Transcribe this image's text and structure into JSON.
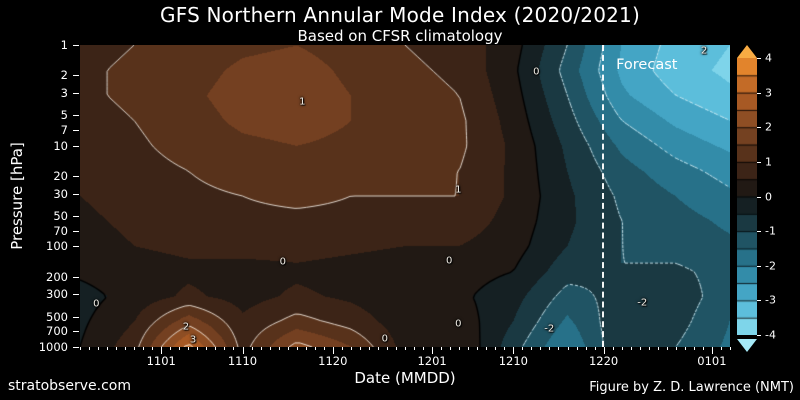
{
  "footer": {
    "site": "stratobserve.com",
    "credit": "Figure by Z. D. Lawrence (NMT)"
  },
  "chart_data": {
    "type": "heatmap",
    "title": "GFS Northern Annular Mode Index (2020/2021)",
    "subtitle": "Based on CFSR climatology",
    "xlabel": "Date (MMDD)",
    "ylabel": "Pressure [hPa]",
    "x_ticks": [
      {
        "label": "1101",
        "day": 0
      },
      {
        "label": "1110",
        "day": 9
      },
      {
        "label": "1120",
        "day": 19
      },
      {
        "label": "1201",
        "day": 30
      },
      {
        "label": "1210",
        "day": 39
      },
      {
        "label": "1220",
        "day": 49
      },
      {
        "label": "0101",
        "day": 61
      }
    ],
    "x_range_days": [
      -9,
      63
    ],
    "y_ticks": [
      1,
      2,
      3,
      5,
      7,
      10,
      20,
      30,
      50,
      70,
      100,
      200,
      300,
      500,
      700,
      1000
    ],
    "y_range_hpa": [
      1,
      1000
    ],
    "y_scale": "log",
    "grid_lines": false,
    "forecast": {
      "label": "Forecast",
      "day": 48.8
    },
    "contour_levels": [
      -3,
      -2,
      -1,
      0,
      1,
      2,
      3
    ],
    "colorbar": {
      "min": -4,
      "max": 4,
      "band_step": 0.5,
      "ticks": [
        4,
        3,
        2,
        1,
        0,
        -1,
        -2,
        -3,
        -4
      ],
      "over_color": "#f8ab43",
      "under_color": "#a5e9f7",
      "colormap_stops": [
        [
          -4,
          "#8ee0f2"
        ],
        [
          -3,
          "#4cb2d3"
        ],
        [
          -2,
          "#2b7f9b"
        ],
        [
          -1,
          "#1c4652"
        ],
        [
          0,
          "#131313"
        ],
        [
          1,
          "#4a2a18"
        ],
        [
          2,
          "#824824"
        ],
        [
          3,
          "#b35f24"
        ],
        [
          4,
          "#f2902e"
        ]
      ]
    },
    "grid": {
      "note": "rows are pressures (top to bottom), cols are days relative to Nov 1",
      "pressures": [
        1.0,
        1.78,
        3.16,
        5.62,
        10,
        17.8,
        31.6,
        56.2,
        100,
        178,
        316,
        562,
        1000
      ],
      "days": [
        -9,
        -3,
        3,
        9,
        15,
        21,
        27,
        33,
        39,
        45,
        51,
        57,
        63
      ],
      "values": [
        [
          0.8,
          1.0,
          1.2,
          1.4,
          1.5,
          1.3,
          1.0,
          0.8,
          0.2,
          -1.0,
          -2.5,
          -3.2,
          -3.5
        ],
        [
          0.9,
          1.1,
          1.3,
          1.6,
          1.7,
          1.4,
          1.1,
          0.9,
          0.1,
          -1.2,
          -2.6,
          -3.3,
          -3.6
        ],
        [
          0.9,
          1.1,
          1.4,
          1.7,
          1.8,
          1.5,
          1.2,
          1.0,
          0.2,
          -1.0,
          -2.4,
          -3.0,
          -3.4
        ],
        [
          0.8,
          1.0,
          1.3,
          1.6,
          1.7,
          1.5,
          1.2,
          1.1,
          0.3,
          -0.8,
          -2.0,
          -2.6,
          -3.0
        ],
        [
          0.7,
          0.9,
          1.2,
          1.4,
          1.5,
          1.4,
          1.2,
          1.1,
          0.4,
          -0.6,
          -1.6,
          -2.2,
          -2.6
        ],
        [
          0.6,
          0.8,
          1.0,
          1.2,
          1.3,
          1.2,
          1.1,
          1.0,
          0.4,
          -0.5,
          -1.3,
          -1.8,
          -2.2
        ],
        [
          0.5,
          0.7,
          0.9,
          1.0,
          1.1,
          1.0,
          1.0,
          1.0,
          0.4,
          -0.4,
          -1.1,
          -1.5,
          -1.9
        ],
        [
          0.4,
          0.6,
          0.8,
          0.9,
          0.9,
          0.9,
          0.8,
          0.8,
          0.3,
          -0.4,
          -1.0,
          -1.3,
          -1.6
        ],
        [
          0.3,
          0.5,
          0.6,
          0.7,
          0.7,
          0.6,
          0.5,
          0.5,
          0.2,
          -0.5,
          -1.0,
          -1.2,
          -1.4
        ],
        [
          0.1,
          0.3,
          0.4,
          0.3,
          0.4,
          0.3,
          0.2,
          0.2,
          0.0,
          -0.8,
          -1.0,
          -0.9,
          -1.2
        ],
        [
          -0.2,
          0.2,
          0.6,
          0.3,
          0.6,
          0.4,
          0.1,
          0.1,
          -0.3,
          -1.2,
          -0.8,
          -0.7,
          -1.3
        ],
        [
          -0.1,
          0.5,
          1.8,
          0.6,
          1.2,
          0.8,
          0.2,
          0.3,
          -0.5,
          -1.6,
          -0.6,
          -0.8,
          -1.5
        ],
        [
          0.0,
          0.8,
          3.2,
          0.8,
          2.2,
          1.5,
          0.3,
          0.5,
          -0.8,
          -2.0,
          -0.5,
          -1.0,
          -1.6
        ]
      ]
    },
    "contour_labels": [
      {
        "text": "1",
        "x_pct": 34.2,
        "y_pct": 18.9
      },
      {
        "text": "1",
        "x_pct": 58.2,
        "y_pct": 48.0
      },
      {
        "text": "0",
        "x_pct": 2.5,
        "y_pct": 85.8
      },
      {
        "text": "0",
        "x_pct": 31.2,
        "y_pct": 71.9
      },
      {
        "text": "0",
        "x_pct": 56.8,
        "y_pct": 71.5
      },
      {
        "text": "0",
        "x_pct": 70.2,
        "y_pct": 8.9
      },
      {
        "text": "0",
        "x_pct": 46.9,
        "y_pct": 97.4
      },
      {
        "text": "0",
        "x_pct": 58.2,
        "y_pct": 92.4
      },
      {
        "text": "2",
        "x_pct": 16.3,
        "y_pct": 93.4
      },
      {
        "text": "3",
        "x_pct": 17.4,
        "y_pct": 97.7
      },
      {
        "text": "-2",
        "x_pct": 72.2,
        "y_pct": 94.0
      },
      {
        "text": "-2",
        "x_pct": 86.5,
        "y_pct": 85.4
      },
      {
        "text": "2",
        "x_pct": 96.0,
        "y_pct": 2.0
      }
    ]
  }
}
